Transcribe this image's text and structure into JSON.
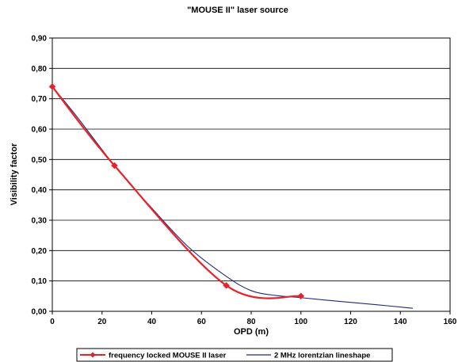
{
  "chart_data": {
    "type": "line",
    "title": "\"MOUSE II\" laser source",
    "xlabel": "OPD (m)",
    "ylabel": "Visibility factor",
    "xlim": [
      0,
      160
    ],
    "ylim": [
      0,
      0.9
    ],
    "x_ticks": [
      0,
      20,
      40,
      60,
      80,
      100,
      120,
      140,
      160
    ],
    "x_tick_labels": [
      "0",
      "20",
      "40",
      "60",
      "80",
      "100",
      "120",
      "140",
      "160"
    ],
    "y_ticks": [
      0,
      0.1,
      0.2,
      0.3,
      0.4,
      0.5,
      0.6,
      0.7,
      0.8,
      0.9
    ],
    "y_tick_labels": [
      "0,00",
      "0,10",
      "0,20",
      "0,30",
      "0,40",
      "0,50",
      "0,60",
      "0,70",
      "0,80",
      "0,90"
    ],
    "grid": "horizontal",
    "legend_position": "bottom",
    "series": [
      {
        "name": "frequency locked MOUSE II laser",
        "color": "#e8222a",
        "marker": "diamond",
        "x": [
          0,
          25,
          70,
          100
        ],
        "y": [
          0.74,
          0.48,
          0.085,
          0.05
        ]
      },
      {
        "name": "2 MHz lorentzian lineshape",
        "color": "#1f2a78",
        "marker": "none",
        "x": [
          0,
          10,
          25,
          40,
          55,
          70,
          80,
          90,
          100,
          115,
          130,
          145
        ],
        "y": [
          0.74,
          0.64,
          0.48,
          0.34,
          0.21,
          0.115,
          0.068,
          0.052,
          0.045,
          0.033,
          0.022,
          0.01
        ]
      }
    ]
  }
}
